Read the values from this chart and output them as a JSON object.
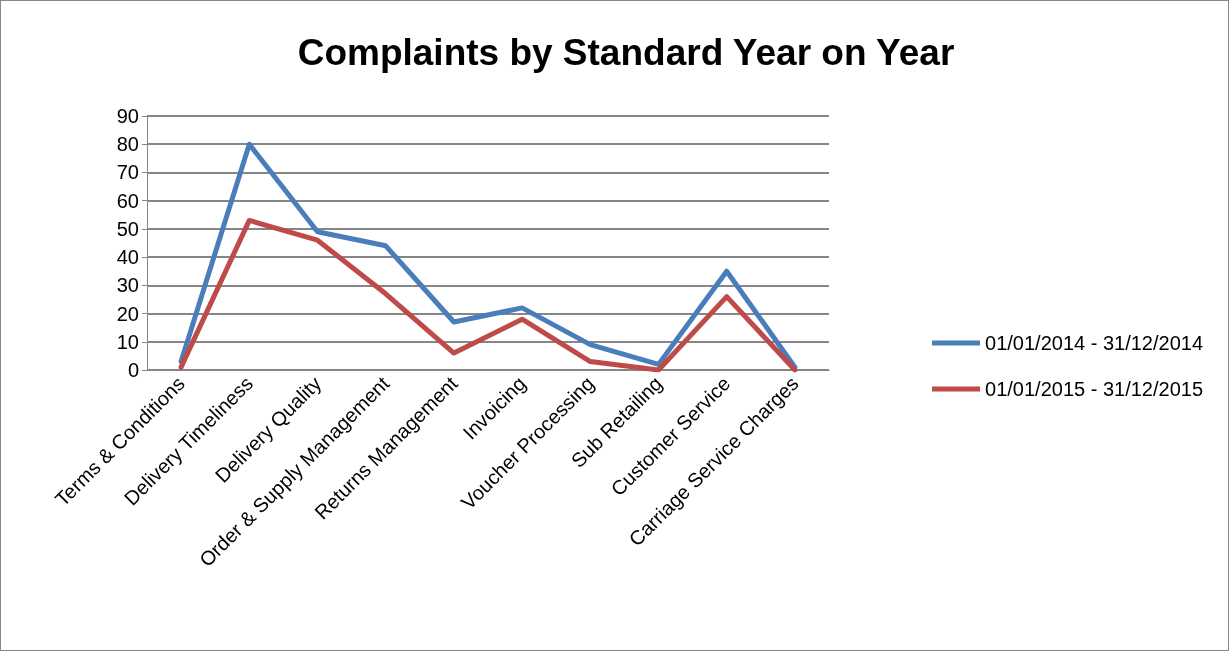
{
  "chart_data": {
    "type": "line",
    "title": "Complaints by Standard Year on Year",
    "categories": [
      "Terms & Conditions",
      "Delivery Timeliness",
      "Delivery Quality",
      "Order & Supply Management",
      "Returns Management",
      "Invoicing",
      "Voucher Processing",
      "Sub Retailing",
      "Customer Service",
      "Carriage Service Charges"
    ],
    "series": [
      {
        "name": "01/01/2014 - 31/12/2014",
        "color": "#4a7ebb",
        "values": [
          3,
          80,
          49,
          44,
          17,
          22,
          9,
          2,
          35,
          1
        ]
      },
      {
        "name": "01/01/2015 - 31/12/2015",
        "color": "#be4b48",
        "values": [
          1,
          53,
          46,
          27,
          6,
          18,
          3,
          0,
          26,
          0
        ]
      }
    ],
    "ylim": [
      0,
      90
    ],
    "yticks": [
      0,
      10,
      20,
      30,
      40,
      50,
      60,
      70,
      80,
      90
    ],
    "grid": "y",
    "legend": "right",
    "marker": "none",
    "line_style": "solid"
  }
}
